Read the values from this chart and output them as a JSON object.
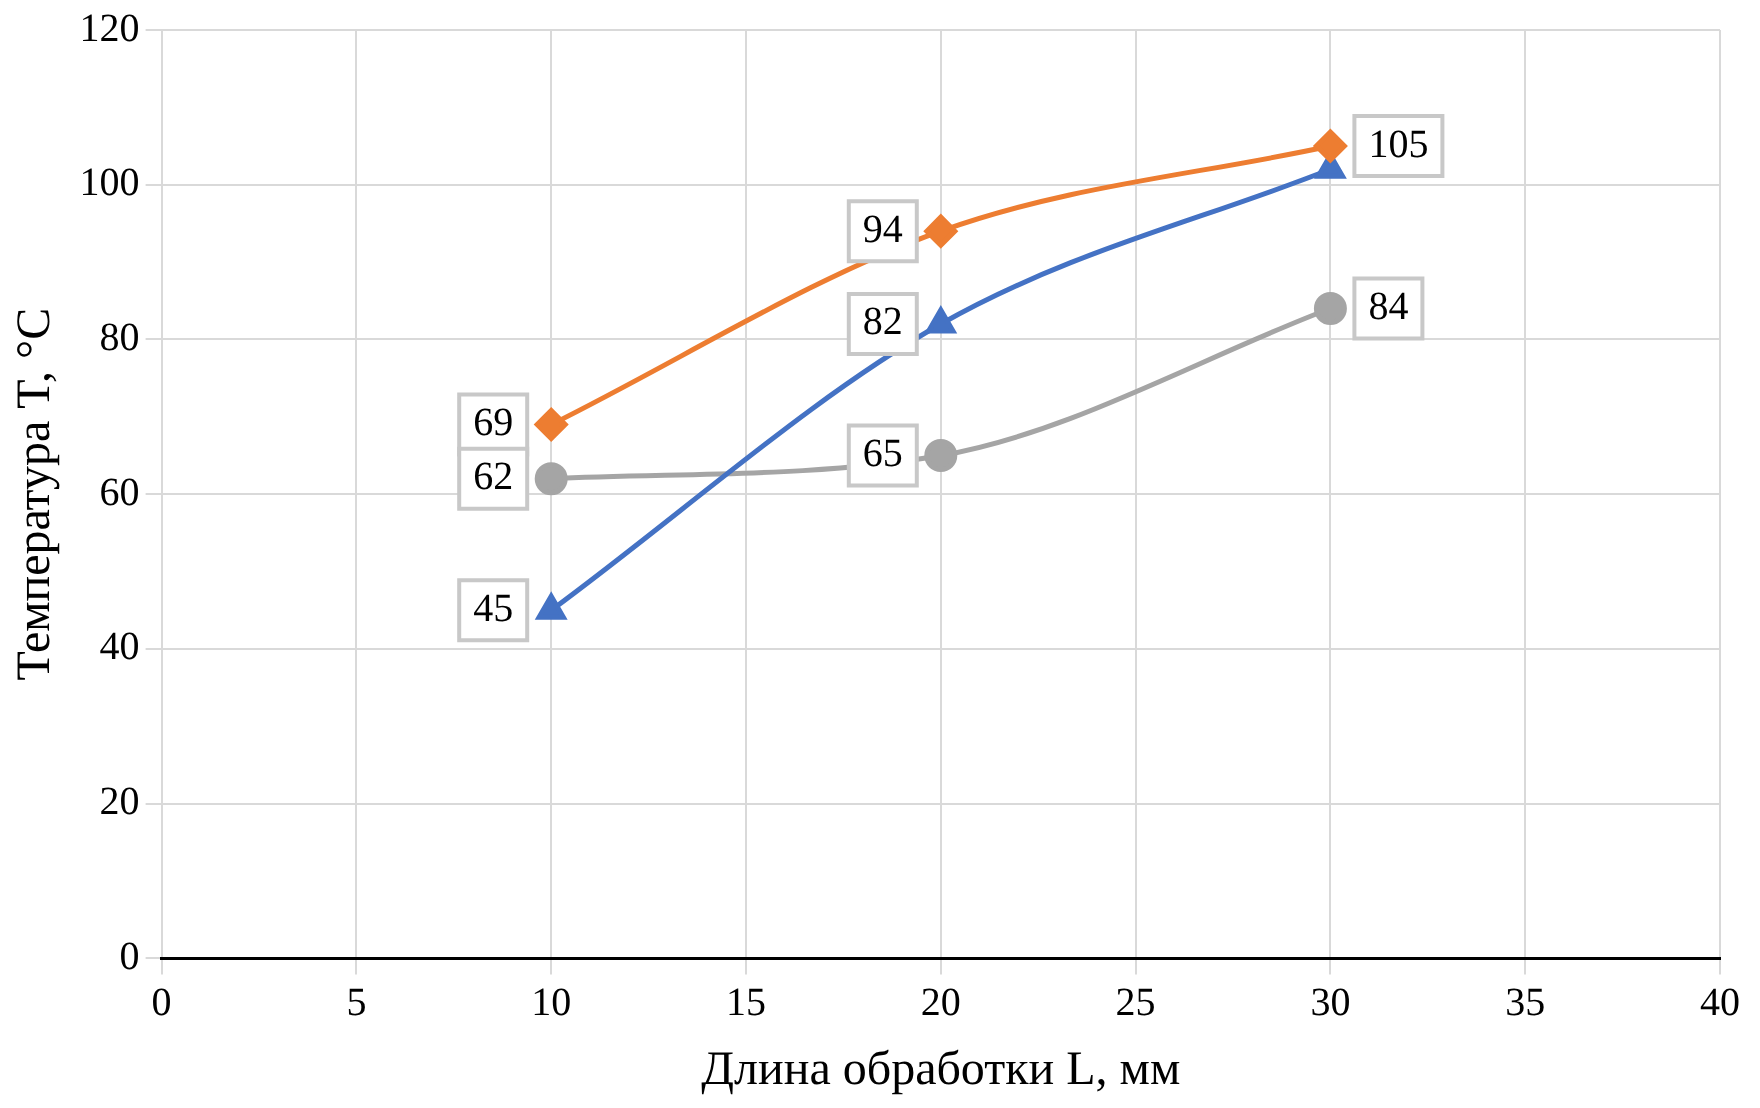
{
  "chart_data": {
    "type": "line",
    "xlabel": "Длина обработки L, мм",
    "ylabel": "Температура T, °С",
    "x": [
      10,
      20,
      30
    ],
    "series": [
      {
        "color": "#ed7d31",
        "values": [
          69,
          94,
          105
        ],
        "marker": "diamond",
        "value_labels": [
          "69",
          "94",
          "105"
        ]
      },
      {
        "color": "#4472c4",
        "values": [
          45,
          82,
          102
        ],
        "marker": "triangle",
        "value_labels": [
          "45",
          "82",
          null
        ]
      },
      {
        "color": "#a5a5a5",
        "values": [
          62,
          65,
          84
        ],
        "marker": "circle",
        "value_labels": [
          "62",
          "65",
          "84"
        ]
      }
    ],
    "xlim": [
      0,
      40
    ],
    "xticks": [
      0,
      5,
      10,
      15,
      20,
      25,
      30,
      35,
      40
    ],
    "ylim": [
      0,
      120
    ],
    "yticks": [
      0,
      20,
      40,
      60,
      80,
      100,
      120
    ],
    "grid": true,
    "legend": false
  }
}
